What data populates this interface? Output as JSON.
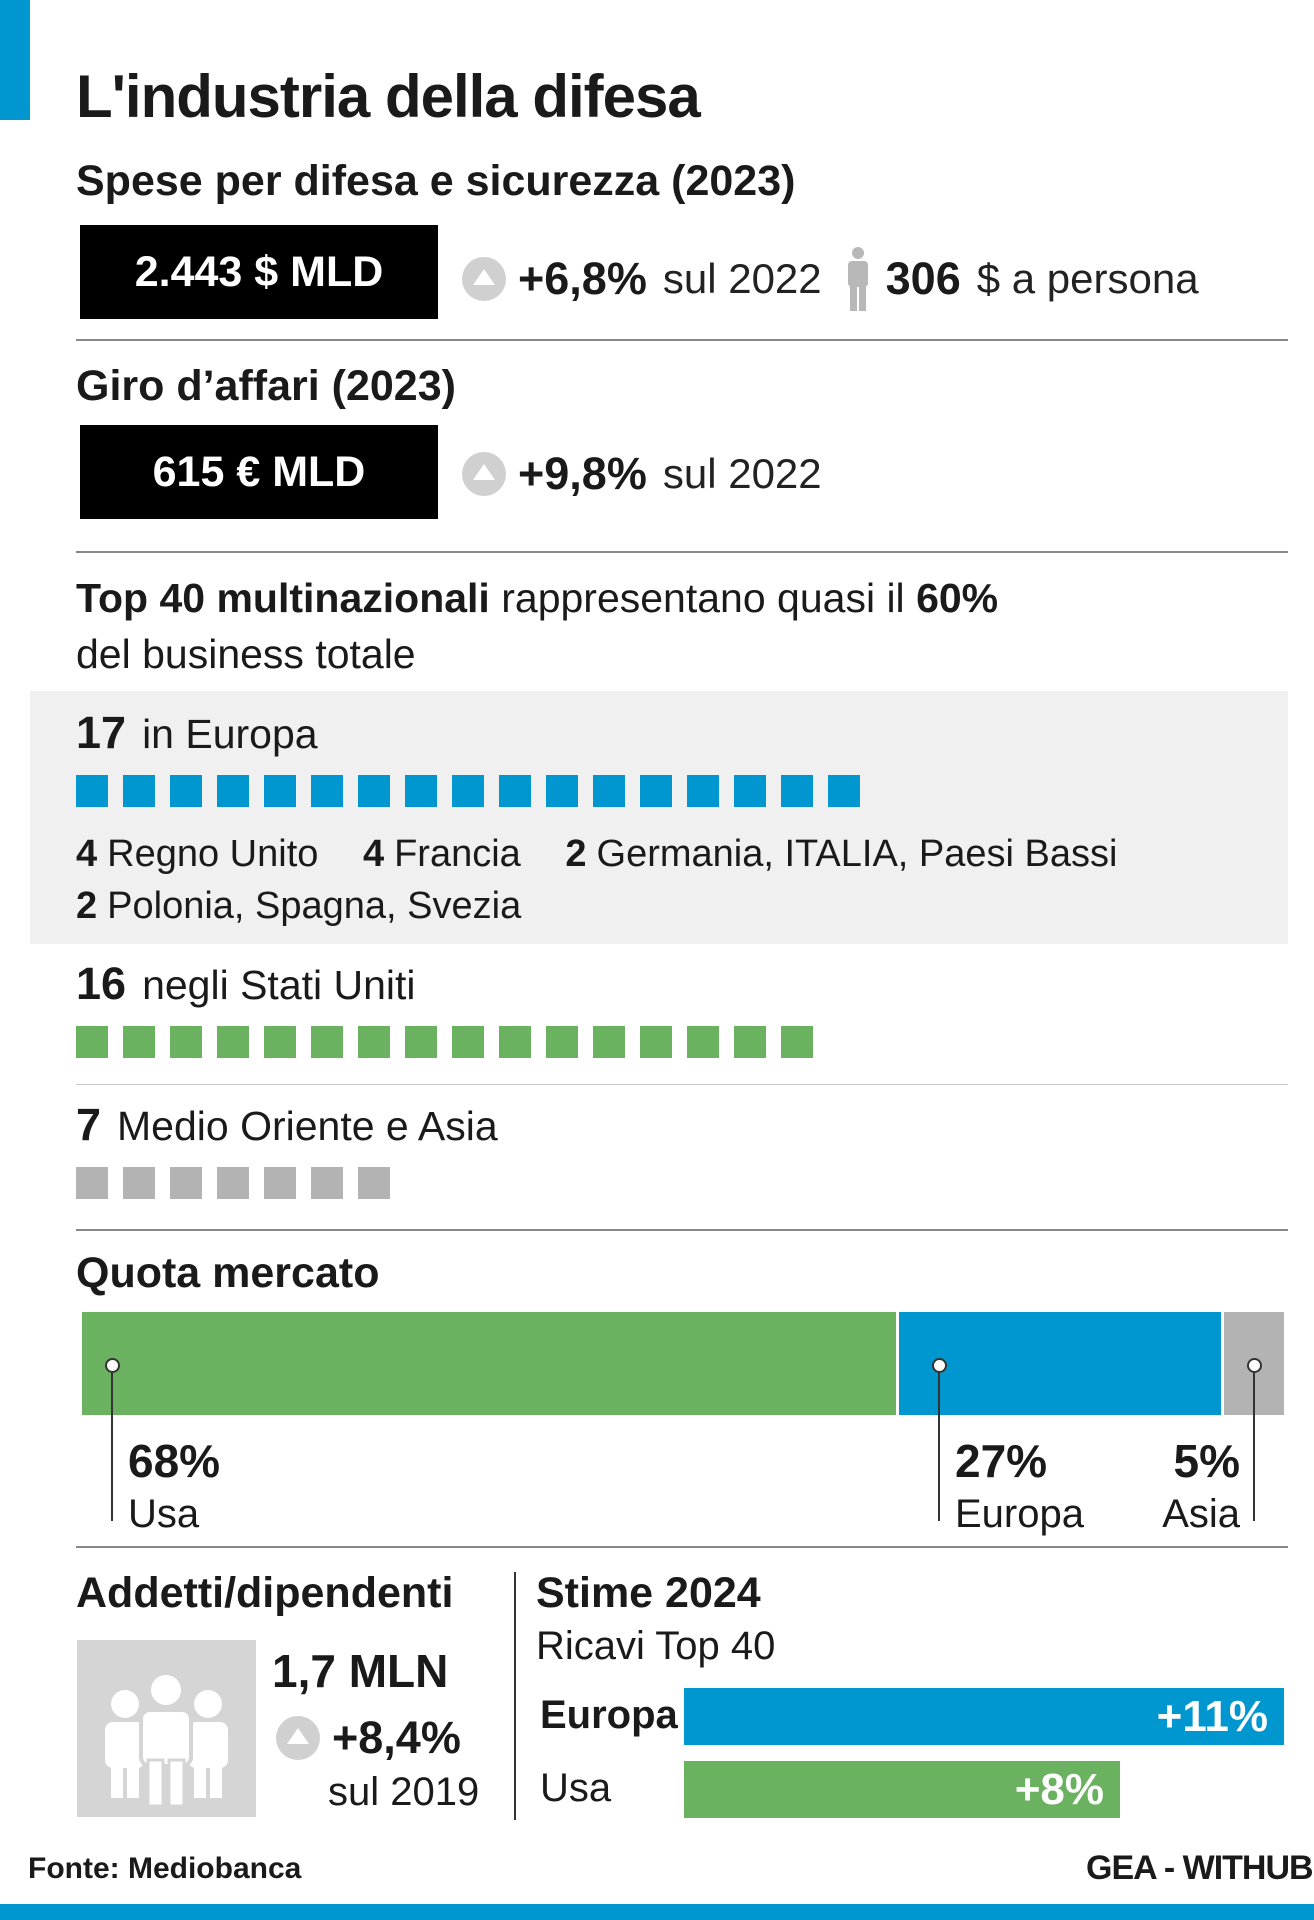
{
  "title": "L'industria della difesa",
  "spese": {
    "heading": "Spese per difesa e sicurezza (2023)",
    "value": "2.443 $ MLD",
    "change": "+6,8%",
    "change_ref": "sul 2022",
    "per_person_value": "306",
    "per_person_label": "$ a persona"
  },
  "giro": {
    "heading": "Giro d’affari (2023)",
    "value": "615 € MLD",
    "change": "+9,8%",
    "change_ref": "sul 2022"
  },
  "top40": {
    "bold_lead": "Top 40 multinazionali",
    "middle": "rappresentano quasi il",
    "pct": "60%",
    "line2": "del business totale"
  },
  "europa": {
    "count": "17",
    "label": "in Europa",
    "countries_line1": [
      {
        "n": "4",
        "name": "Regno Unito"
      },
      {
        "n": "4",
        "name": "Francia"
      },
      {
        "n": "2",
        "name": "Germania, ITALIA, Paesi Bassi"
      }
    ],
    "countries_line2": [
      {
        "n": "2",
        "name": "Polonia, Spagna, Svezia"
      }
    ]
  },
  "usa": {
    "count": "16",
    "label": "negli Stati Uniti"
  },
  "asia": {
    "count": "7",
    "label": "Medio Oriente e Asia"
  },
  "quota": {
    "heading": "Quota mercato",
    "segments": [
      {
        "pct": "68%",
        "name": "Usa",
        "value": 68
      },
      {
        "pct": "27%",
        "name": "Europa",
        "value": 27
      },
      {
        "pct": "5%",
        "name": "Asia",
        "value": 5
      }
    ]
  },
  "addetti": {
    "heading": "Addetti/dipendenti",
    "value": "1,7 MLN",
    "change": "+8,4%",
    "change_ref": "sul 2019"
  },
  "stime": {
    "heading": "Stime 2024",
    "subheading": "Ricavi Top 40",
    "bars": [
      {
        "name": "Europa",
        "label": "+11%",
        "value": 11
      },
      {
        "name": "Usa",
        "label": "+8%",
        "value": 8
      }
    ]
  },
  "footer": {
    "source": "Fonte: Mediobanca",
    "credit": "GEA - WITHUB"
  },
  "colors": {
    "europe": "#0097d0",
    "usa": "#6ab160",
    "asia": "#b3b3b3",
    "panel": "#f0f0f0"
  },
  "chart_data": [
    {
      "type": "bar",
      "title": "Top 40 multinazionali",
      "categories": [
        "in Europa",
        "negli Stati Uniti",
        "Medio Oriente e Asia"
      ],
      "values": [
        17,
        16,
        7
      ]
    },
    {
      "type": "bar",
      "title": "Quota mercato",
      "categories": [
        "Usa",
        "Europa",
        "Asia"
      ],
      "values": [
        68,
        27,
        5
      ]
    },
    {
      "type": "bar",
      "title": "Stime 2024",
      "categories": [
        "Europa",
        "Usa"
      ],
      "values": [
        11,
        8
      ]
    }
  ]
}
